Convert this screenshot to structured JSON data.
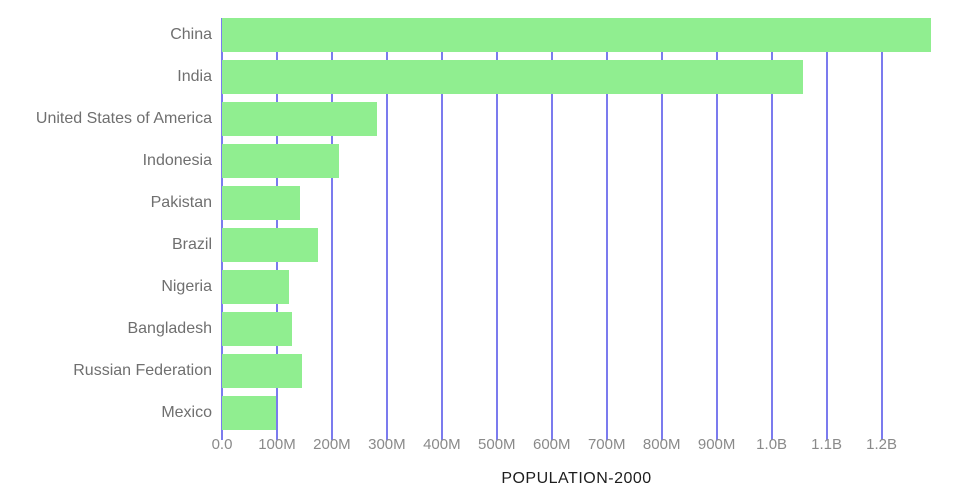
{
  "chart_data": {
    "type": "bar",
    "orientation": "horizontal",
    "title": "POPULATION-2000",
    "categories": [
      "China",
      "India",
      "United States of America",
      "Indonesia",
      "Pakistan",
      "Brazil",
      "Nigeria",
      "Bangladesh",
      "Russian Federation",
      "Mexico"
    ],
    "values": [
      1290000000,
      1057000000,
      282000000,
      212000000,
      142000000,
      175000000,
      122000000,
      128000000,
      146000000,
      99000000
    ],
    "x_ticks": [
      {
        "label": "0.0",
        "value": 0
      },
      {
        "label": "100M",
        "value": 100000000
      },
      {
        "label": "200M",
        "value": 200000000
      },
      {
        "label": "300M",
        "value": 300000000
      },
      {
        "label": "400M",
        "value": 400000000
      },
      {
        "label": "500M",
        "value": 500000000
      },
      {
        "label": "600M",
        "value": 600000000
      },
      {
        "label": "700M",
        "value": 700000000
      },
      {
        "label": "800M",
        "value": 800000000
      },
      {
        "label": "900M",
        "value": 900000000
      },
      {
        "label": "1.0B",
        "value": 1000000000
      },
      {
        "label": "1.1B",
        "value": 1100000000
      },
      {
        "label": "1.2B",
        "value": 1200000000
      }
    ],
    "xlim": [
      0,
      1290000000
    ],
    "grid": true,
    "legend": false,
    "colors": {
      "bar": "#90ee90",
      "gridline": "#7b7bee",
      "category_label": "#6f6f6f",
      "tick_label": "#8a8a8a",
      "title": "#1d1d1d",
      "background": "#ffffff"
    }
  }
}
